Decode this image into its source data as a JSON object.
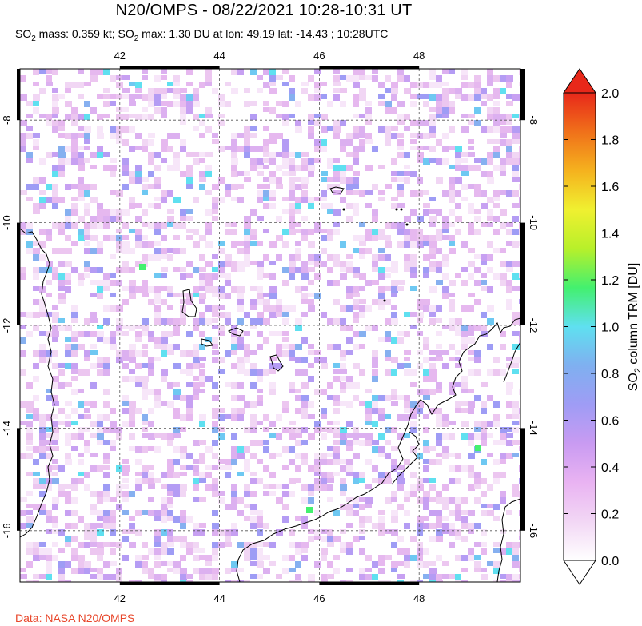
{
  "title": "N20/OMPS - 08/22/2021 10:28-10:31 UT",
  "subtitle": {
    "prefix": "SO",
    "sub1": "2",
    "mid1": " mass: 0.359 kt; SO",
    "sub2": "2",
    "rest": " max: 1.30 DU at lon: 49.19 lat: -14.43 ; 10:28UTC"
  },
  "credit": "Data: NASA N20/OMPS",
  "map": {
    "lon_ticks": [
      "42",
      "44",
      "46",
      "48"
    ],
    "lat_ticks": [
      "-8",
      "-10",
      "-12",
      "-14",
      "-16"
    ],
    "lon_range": [
      40.0,
      50.0
    ],
    "lat_range": [
      -17.0,
      -7.0
    ],
    "gridlines": "dashed"
  },
  "colorbar": {
    "label": "SO2 column TRM [DU]",
    "label_main": "SO",
    "label_sub": "2",
    "label_rest": " column TRM [DU]",
    "ticks": [
      "2.0",
      "1.8",
      "1.6",
      "1.4",
      "1.2",
      "1.0",
      "0.8",
      "0.6",
      "0.4",
      "0.2",
      "0.0"
    ],
    "range": [
      0.0,
      2.0
    ],
    "colors": [
      "#ffffff",
      "#f2d7f5",
      "#e9b3f2",
      "#c99bf2",
      "#9f9cf5",
      "#7fb0f0",
      "#5fe0f0",
      "#43f06f",
      "#b8f02a",
      "#f0f030",
      "#f5b21e",
      "#f0701a",
      "#e8281a",
      "#cc0000"
    ]
  },
  "chart_data": {
    "type": "heatmap",
    "title": "N20/OMPS - 08/22/2021 10:28-10:31 UT",
    "xlabel": "",
    "ylabel": "",
    "xlim": [
      40.0,
      50.0
    ],
    "ylim": [
      -17.0,
      -7.0
    ],
    "color_range": [
      0.0,
      2.0
    ],
    "colorbar_label": "SO2 column TRM [DU]",
    "max_point": {
      "lon": 49.19,
      "lat": -14.43,
      "value": 1.3
    },
    "so2_mass_kt": 0.359
  }
}
